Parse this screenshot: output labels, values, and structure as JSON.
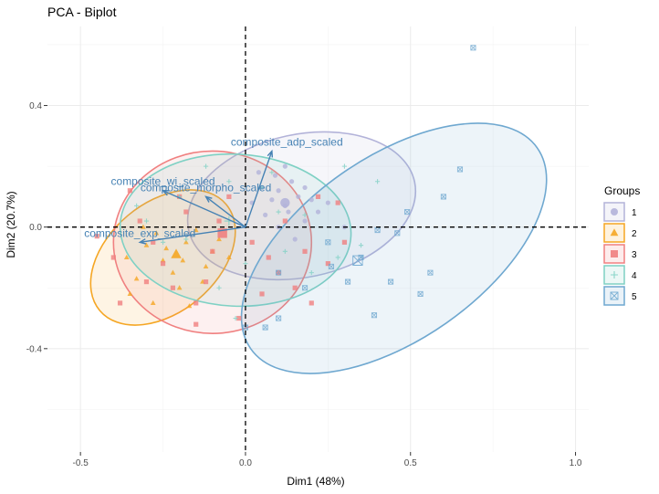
{
  "chart_data": {
    "type": "scatter",
    "title": "PCA - Biplot",
    "xlabel": "Dim1 (48%)",
    "ylabel": "Dim2 (20.7%)",
    "xlim": [
      -0.6,
      1.04
    ],
    "ylim": [
      -0.74,
      0.66
    ],
    "x_ticks": [
      -0.5,
      0.0,
      0.5,
      1.0
    ],
    "x_tick_labels": [
      "-0.5",
      "0.0",
      "0.5",
      "1.0"
    ],
    "y_ticks": [
      -0.4,
      0.0,
      0.4
    ],
    "y_tick_labels": [
      "-0.4",
      "0.0",
      "0.4"
    ],
    "grid": true,
    "reference_lines": {
      "x": 0,
      "y": 0,
      "style": "dashed"
    },
    "legend": {
      "title": "Groups",
      "placement": "right"
    },
    "series": [
      {
        "name": "1",
        "color": "#b3b3d9",
        "marker": "circle",
        "centroid": [
          0.12,
          0.08
        ],
        "ellipse": {
          "cx": 0.17,
          "cy": 0.07,
          "rx": 0.35,
          "ry": 0.235,
          "angle": -12
        },
        "points": [
          [
            0.05,
            0.13
          ],
          [
            0.1,
            0.12
          ],
          [
            0.14,
            0.15
          ],
          [
            0.09,
            0.17
          ],
          [
            0.16,
            0.1
          ],
          [
            0.2,
            0.09
          ],
          [
            0.12,
            0.07
          ],
          [
            0.22,
            0.05
          ],
          [
            0.18,
            0.02
          ],
          [
            0.1,
            0.0
          ],
          [
            0.06,
            0.04
          ],
          [
            0.15,
            -0.04
          ],
          [
            0.25,
            0.08
          ],
          [
            0.04,
            0.18
          ],
          [
            0.13,
            0.05
          ],
          [
            0.18,
            0.13
          ],
          [
            0.08,
            0.09
          ],
          [
            0.02,
            0.08
          ],
          [
            0.12,
            0.2
          ],
          [
            0.3,
            0.0
          ]
        ]
      },
      {
        "name": "2",
        "color": "#f5a623",
        "marker": "triangle",
        "centroid": [
          -0.21,
          -0.09
        ],
        "ellipse": {
          "cx": -0.25,
          "cy": -0.1,
          "rx": 0.25,
          "ry": 0.18,
          "angle": -40
        },
        "points": [
          [
            -0.3,
            -0.06
          ],
          [
            -0.25,
            -0.11
          ],
          [
            -0.18,
            -0.05
          ],
          [
            -0.33,
            -0.17
          ],
          [
            -0.2,
            -0.2
          ],
          [
            -0.12,
            -0.13
          ],
          [
            -0.27,
            -0.02
          ],
          [
            -0.36,
            -0.1
          ],
          [
            -0.15,
            -0.01
          ],
          [
            -0.22,
            -0.15
          ],
          [
            -0.1,
            -0.08
          ],
          [
            -0.28,
            -0.25
          ],
          [
            -0.05,
            -0.1
          ],
          [
            -0.17,
            -0.26
          ],
          [
            -0.31,
            0.0
          ],
          [
            -0.24,
            -0.07
          ],
          [
            -0.13,
            -0.18
          ],
          [
            -0.08,
            -0.04
          ],
          [
            -0.35,
            -0.22
          ],
          [
            -0.19,
            -0.11
          ]
        ]
      },
      {
        "name": "3",
        "color": "#f08080",
        "marker": "square",
        "centroid": [
          -0.07,
          -0.02
        ],
        "ellipse": {
          "cx": -0.1,
          "cy": -0.05,
          "rx": 0.3,
          "ry": 0.3,
          "angle": 0
        },
        "points": [
          [
            -0.4,
            -0.1
          ],
          [
            -0.32,
            0.02
          ],
          [
            -0.25,
            -0.12
          ],
          [
            -0.18,
            0.05
          ],
          [
            -0.1,
            -0.08
          ],
          [
            -0.05,
            0.1
          ],
          [
            0.02,
            -0.05
          ],
          [
            0.1,
            -0.15
          ],
          [
            0.18,
            -0.08
          ],
          [
            0.25,
            -0.12
          ],
          [
            -0.35,
            0.12
          ],
          [
            -0.22,
            -0.2
          ],
          [
            -0.15,
            -0.25
          ],
          [
            0.05,
            -0.22
          ],
          [
            -0.02,
            -0.3
          ],
          [
            0.12,
            0.02
          ],
          [
            0.22,
            0.1
          ],
          [
            -0.28,
            -0.05
          ],
          [
            -0.12,
            -0.18
          ],
          [
            0.15,
            -0.2
          ],
          [
            -0.38,
            -0.25
          ],
          [
            -0.45,
            -0.03
          ],
          [
            0.3,
            -0.05
          ],
          [
            -0.2,
            0.1
          ],
          [
            -0.08,
            0.02
          ],
          [
            0.28,
            0.08
          ],
          [
            0.07,
            -0.1
          ],
          [
            -0.3,
            -0.18
          ],
          [
            -0.15,
            -0.32
          ],
          [
            0.2,
            -0.25
          ]
        ]
      },
      {
        "name": "4",
        "color": "#7fd1c4",
        "marker": "plus",
        "centroid": [
          -0.05,
          0.02
        ],
        "ellipse": {
          "cx": -0.03,
          "cy": -0.01,
          "rx": 0.35,
          "ry": 0.25,
          "angle": 3
        },
        "points": [
          [
            -0.2,
            0.1
          ],
          [
            -0.12,
            0.2
          ],
          [
            -0.05,
            0.15
          ],
          [
            0.05,
            0.13
          ],
          [
            0.1,
            0.05
          ],
          [
            0.18,
            0.04
          ],
          [
            -0.3,
            0.02
          ],
          [
            -0.25,
            -0.05
          ],
          [
            0.0,
            -0.12
          ],
          [
            0.12,
            -0.08
          ],
          [
            0.2,
            -0.15
          ],
          [
            -0.08,
            -0.2
          ],
          [
            0.28,
            -0.1
          ],
          [
            0.35,
            -0.06
          ],
          [
            0.4,
            0.15
          ],
          [
            -0.33,
            0.07
          ],
          [
            -0.03,
            -0.3
          ],
          [
            0.3,
            0.2
          ],
          [
            0.08,
            0.18
          ],
          [
            -0.18,
            -0.04
          ]
        ]
      },
      {
        "name": "5",
        "color": "#6fa8d0",
        "marker": "square-x",
        "centroid": [
          0.34,
          -0.11
        ],
        "ellipse": {
          "cx": 0.45,
          "cy": -0.07,
          "rx": 0.53,
          "ry": 0.3,
          "angle": -35
        },
        "points": [
          [
            0.69,
            0.59
          ],
          [
            0.65,
            0.19
          ],
          [
            0.6,
            0.1
          ],
          [
            0.49,
            0.05
          ],
          [
            0.4,
            -0.01
          ],
          [
            0.46,
            -0.02
          ],
          [
            0.56,
            -0.15
          ],
          [
            0.53,
            -0.22
          ],
          [
            0.44,
            -0.18
          ],
          [
            0.39,
            -0.29
          ],
          [
            0.31,
            -0.18
          ],
          [
            0.26,
            -0.13
          ],
          [
            0.18,
            -0.2
          ],
          [
            0.1,
            -0.15
          ],
          [
            0.35,
            -0.1
          ],
          [
            0.1,
            -0.3
          ],
          [
            0.06,
            -0.33
          ],
          [
            0.0,
            -0.33
          ],
          [
            0.25,
            -0.05
          ]
        ]
      }
    ],
    "variables": [
      {
        "name": "composite_adp_scaled",
        "x": 0.08,
        "y": 0.25
      },
      {
        "name": "composite_morpho_scaled",
        "x": -0.12,
        "y": 0.1
      },
      {
        "name": "composite_wi_scaled",
        "x": -0.25,
        "y": 0.12
      },
      {
        "name": "composite_exp_scaled",
        "x": -0.32,
        "y": -0.05
      }
    ]
  }
}
